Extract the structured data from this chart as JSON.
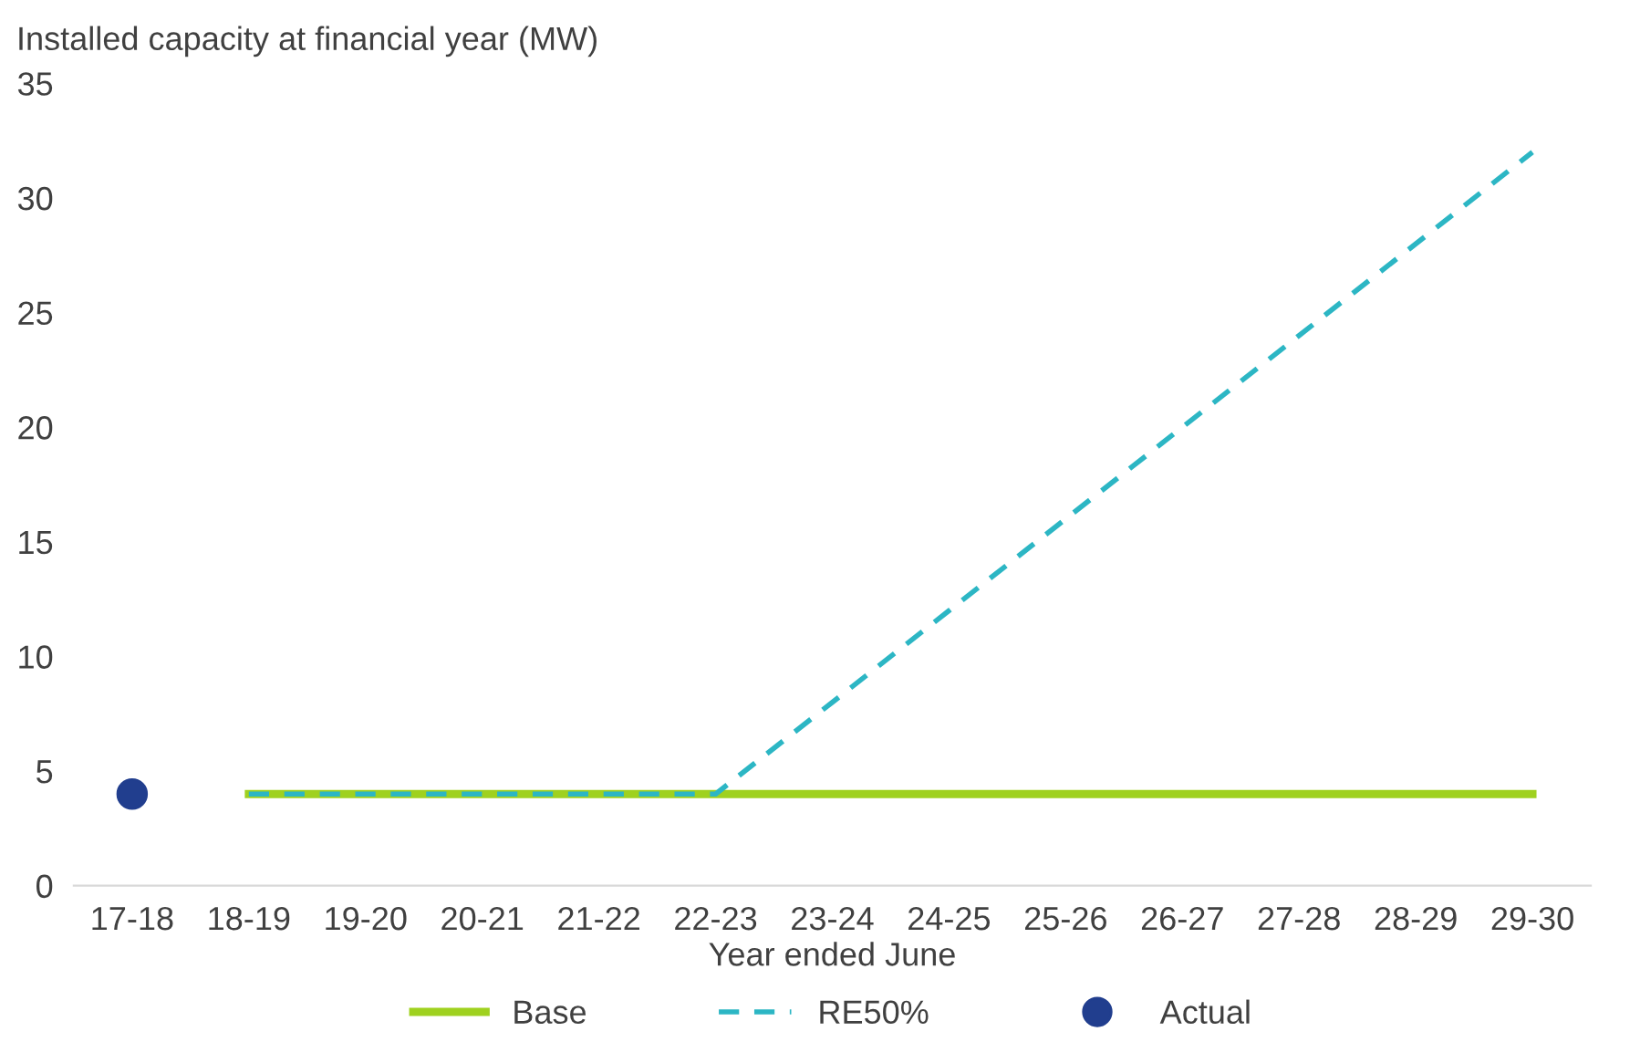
{
  "chart_data": {
    "type": "line",
    "ylabel": "Installed capacity at financial year (MW)",
    "xlabel": "Year ended June",
    "categories": [
      "17-18",
      "18-19",
      "19-20",
      "20-21",
      "21-22",
      "22-23",
      "23-24",
      "24-25",
      "25-26",
      "26-27",
      "27-28",
      "28-29",
      "29-30"
    ],
    "series": [
      {
        "name": "Base",
        "color": "#9fd11f",
        "line_style": "solid",
        "values": [
          null,
          4,
          4,
          4,
          4,
          4,
          4,
          4,
          4,
          4,
          4,
          4,
          4
        ]
      },
      {
        "name": "RE50%",
        "color": "#2cb6c4",
        "line_style": "dashed",
        "values": [
          null,
          4,
          4,
          4,
          4,
          4,
          8,
          12,
          16,
          20,
          24,
          28,
          32
        ]
      },
      {
        "name": "Actual",
        "type": "scatter",
        "marker": "circle",
        "color": "#213e8e",
        "values": [
          4,
          null,
          null,
          null,
          null,
          null,
          null,
          null,
          null,
          null,
          null,
          null,
          null
        ]
      }
    ],
    "ylim": [
      0,
      35
    ],
    "yticks": [
      0,
      5,
      10,
      15,
      20,
      25,
      30,
      35
    ],
    "grid": false,
    "legend": "bottom"
  }
}
